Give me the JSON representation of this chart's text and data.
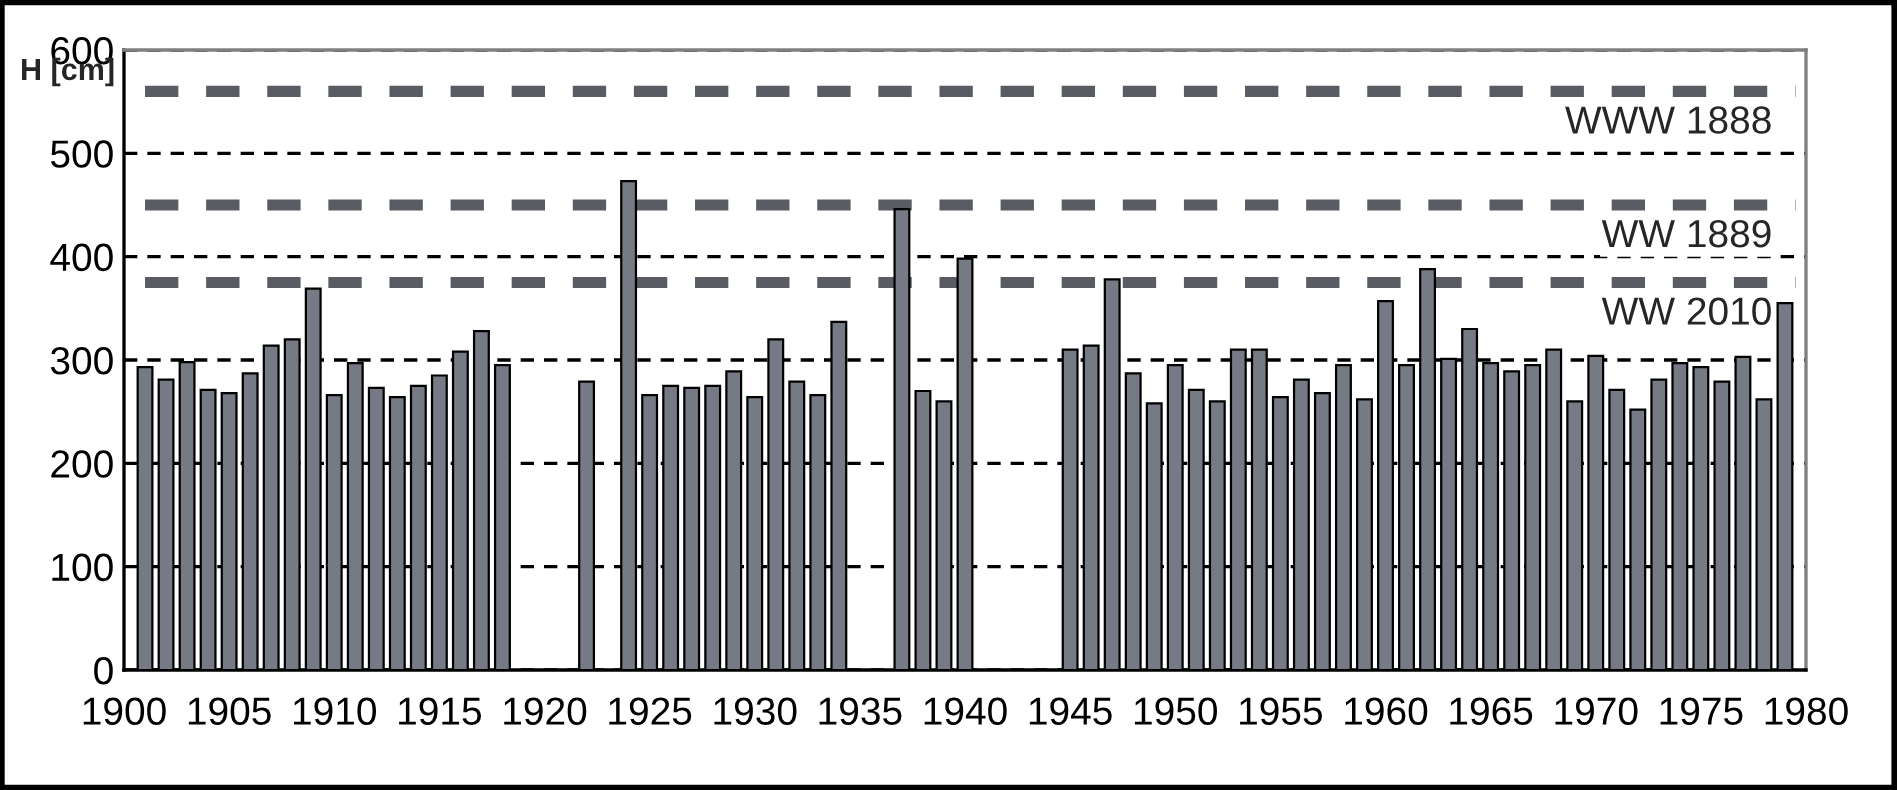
{
  "chart_data": {
    "type": "bar",
    "ylabel": "H [cm]",
    "x": [
      1901,
      1902,
      1903,
      1904,
      1905,
      1906,
      1907,
      1908,
      1909,
      1910,
      1911,
      1912,
      1913,
      1914,
      1915,
      1916,
      1917,
      1918,
      1922,
      1924,
      1925,
      1926,
      1927,
      1928,
      1929,
      1930,
      1931,
      1932,
      1933,
      1934,
      1937,
      1938,
      1939,
      1940,
      1945,
      1946,
      1947,
      1948,
      1949,
      1950,
      1951,
      1952,
      1953,
      1954,
      1955,
      1956,
      1957,
      1958,
      1959,
      1960,
      1961,
      1962,
      1963,
      1964,
      1965,
      1966,
      1967,
      1968,
      1969,
      1970,
      1971,
      1972,
      1973,
      1974,
      1975,
      1976,
      1977,
      1978,
      1979
    ],
    "series": [
      {
        "color": "#767a84",
        "values": [
          293,
          281,
          298,
          271,
          268,
          287,
          314,
          320,
          369,
          266,
          297,
          273,
          264,
          275,
          285,
          308,
          328,
          295,
          279,
          473,
          266,
          275,
          273,
          275,
          289,
          264,
          320,
          279,
          266,
          337,
          446,
          270,
          260,
          398,
          310,
          314,
          378,
          287,
          258,
          295,
          271,
          260,
          310,
          310,
          264,
          281,
          268,
          295,
          262,
          357,
          295,
          388,
          301,
          330,
          297,
          289,
          295,
          310,
          260,
          304,
          271,
          252,
          281,
          297,
          293,
          279,
          303,
          262,
          355
        ]
      }
    ],
    "xlim": [
      1900,
      1980
    ],
    "xticks": [
      1900,
      1905,
      1910,
      1915,
      1920,
      1925,
      1930,
      1935,
      1940,
      1945,
      1950,
      1955,
      1960,
      1965,
      1970,
      1975,
      1980
    ],
    "ylim": [
      0,
      600
    ],
    "yticks": [
      0,
      100,
      200,
      300,
      400,
      500,
      600
    ],
    "grid": "y",
    "line_style": "dashed",
    "ref_lines": [
      {
        "axis": "y",
        "value": 560,
        "label": "WWW 1888",
        "color": "#595c63",
        "line_style": "dashed"
      },
      {
        "axis": "y",
        "value": 450,
        "label": "WW 1889",
        "color": "#595c63",
        "line_style": "dashed"
      },
      {
        "axis": "y",
        "value": 375,
        "label": "WW 2010",
        "color": "#595c63",
        "line_style": "dashed"
      }
    ]
  }
}
